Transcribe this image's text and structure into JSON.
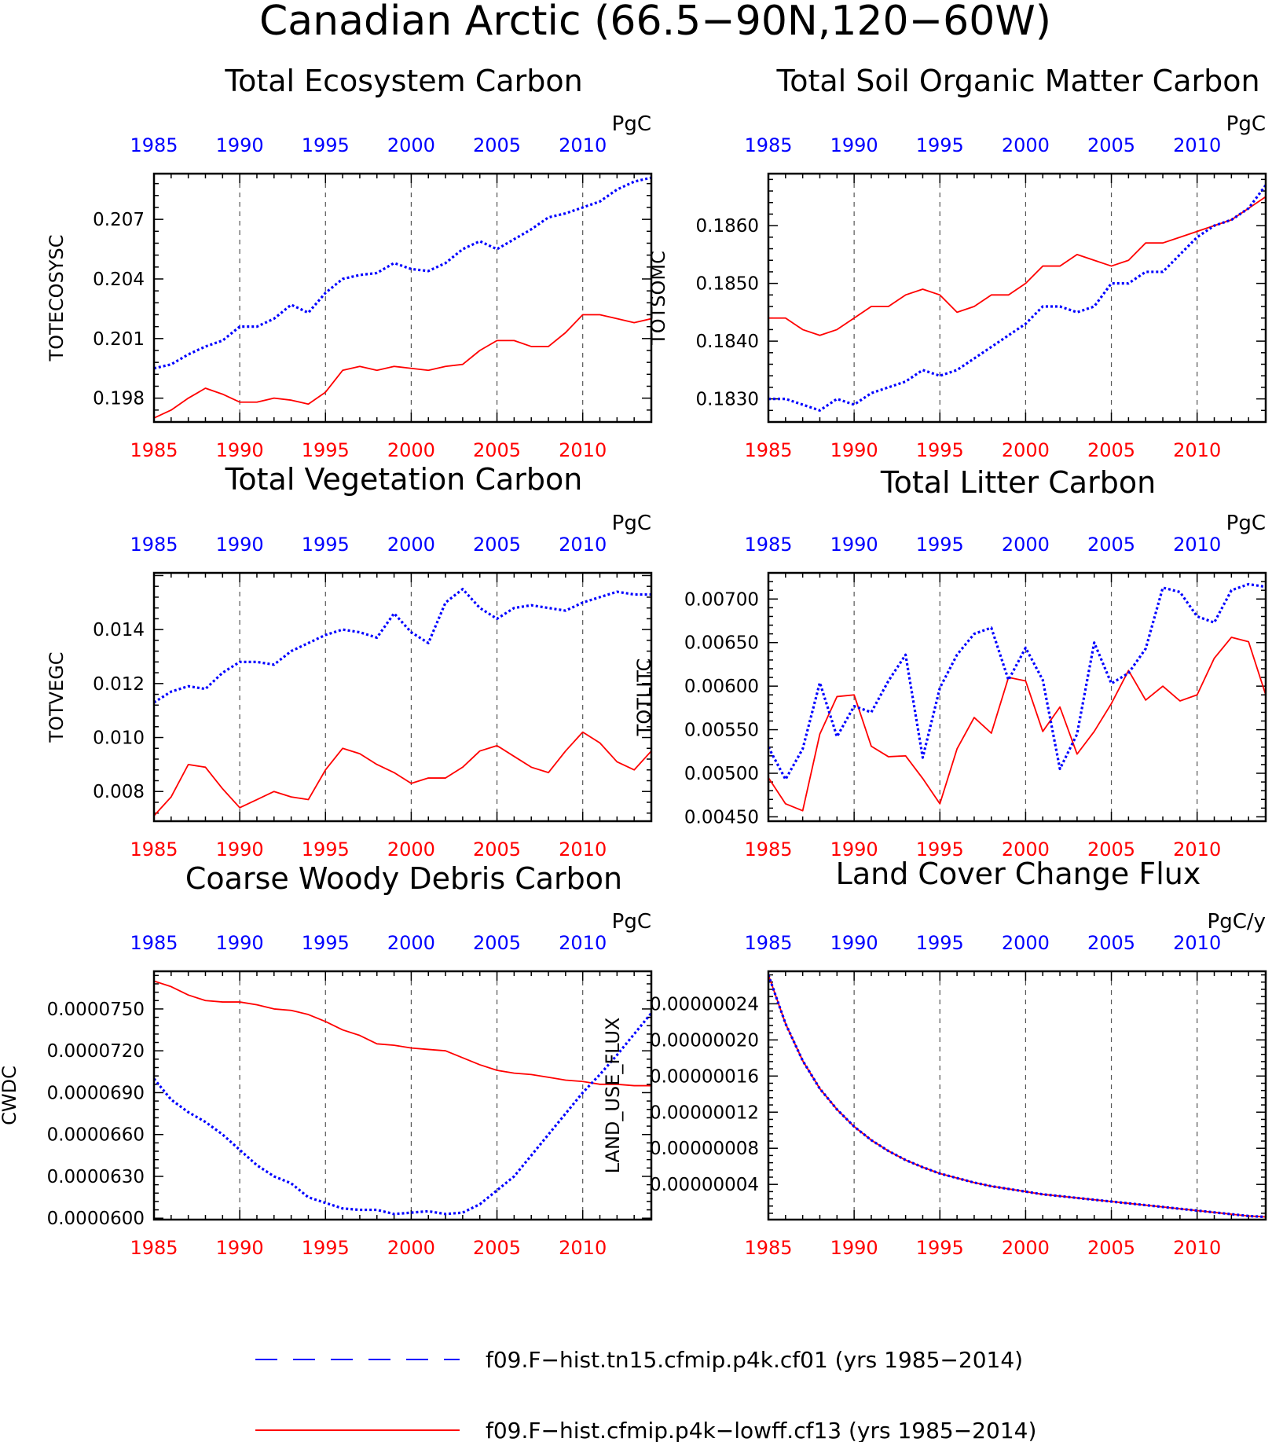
{
  "figure_title": "Canadian Arctic (66.5−90N,120−60W)",
  "colors": {
    "series_a": "#0000ff",
    "series_b": "#ff0000",
    "axis": "#000000",
    "grid": "#555555"
  },
  "legend": {
    "entries": [
      {
        "label": "f09.F−hist.tn15.cfmip.p4k.cf01 (yrs 1985−2014)",
        "color": "#0000ff",
        "style": "dashed"
      },
      {
        "label": "f09.F−hist.cfmip.p4k−lowff.cf13 (yrs 1985−2014)",
        "color": "#ff0000",
        "style": "solid"
      }
    ]
  },
  "chart_data": [
    {
      "type": "line",
      "title": "Total Ecosystem Carbon",
      "ylabel": "TOTECOSYSC",
      "units": "PgC",
      "xlim": [
        1985,
        2014
      ],
      "ylim": [
        0.1968,
        0.2093
      ],
      "yticks": [
        0.198,
        0.201,
        0.204,
        0.207
      ],
      "ytick_labels": [
        "0.198",
        "0.201",
        "0.204",
        "0.207"
      ],
      "xticks": [
        1985,
        1990,
        1995,
        2000,
        2005,
        2010
      ],
      "xtick_labels": [
        "1985",
        "1990",
        "1995",
        "2000",
        "2005",
        "2010"
      ],
      "x_start": 1985,
      "series": [
        {
          "color": "#0000ff",
          "style": "dashed",
          "values": [
            0.1995,
            0.1997,
            0.2002,
            0.2006,
            0.2009,
            0.2016,
            0.2016,
            0.202,
            0.2027,
            0.2023,
            0.2033,
            0.204,
            0.2042,
            0.2043,
            0.2048,
            0.2045,
            0.2044,
            0.2048,
            0.2055,
            0.2059,
            0.2055,
            0.206,
            0.2065,
            0.2071,
            0.2073,
            0.2076,
            0.2079,
            0.2085,
            0.2089,
            0.2091
          ]
        },
        {
          "color": "#ff0000",
          "style": "solid",
          "values": [
            0.197,
            0.1974,
            0.198,
            0.1985,
            0.1982,
            0.1978,
            0.1978,
            0.198,
            0.1979,
            0.1977,
            0.1983,
            0.1994,
            0.1996,
            0.1994,
            0.1996,
            0.1995,
            0.1994,
            0.1996,
            0.1997,
            0.2004,
            0.2009,
            0.2009,
            0.2006,
            0.2006,
            0.2013,
            0.2022,
            0.2022,
            0.202,
            0.2018,
            0.202
          ]
        }
      ]
    },
    {
      "type": "line",
      "title": "Total Soil Organic Matter Carbon",
      "ylabel": "TOTSOMC",
      "units": "PgC",
      "xlim": [
        1985,
        2014
      ],
      "ylim": [
        0.1826,
        0.1869
      ],
      "yticks": [
        0.183,
        0.184,
        0.185,
        0.186
      ],
      "ytick_labels": [
        "0.1830",
        "0.1840",
        "0.1850",
        "0.1860"
      ],
      "xticks": [
        1985,
        1990,
        1995,
        2000,
        2005,
        2010
      ],
      "xtick_labels": [
        "1985",
        "1990",
        "1995",
        "2000",
        "2005",
        "2010"
      ],
      "x_start": 1985,
      "series": [
        {
          "color": "#0000ff",
          "style": "dashed",
          "values": [
            0.183,
            0.183,
            0.1829,
            0.1828,
            0.183,
            0.1829,
            0.1831,
            0.1832,
            0.1833,
            0.1835,
            0.1834,
            0.1835,
            0.1837,
            0.1839,
            0.1841,
            0.1843,
            0.1846,
            0.1846,
            0.1845,
            0.1846,
            0.185,
            0.185,
            0.1852,
            0.1852,
            0.1855,
            0.1858,
            0.186,
            0.1861,
            0.1863,
            0.1867
          ]
        },
        {
          "color": "#ff0000",
          "style": "solid",
          "values": [
            0.1844,
            0.1844,
            0.1842,
            0.1841,
            0.1842,
            0.1844,
            0.1846,
            0.1846,
            0.1848,
            0.1849,
            0.1848,
            0.1845,
            0.1846,
            0.1848,
            0.1848,
            0.185,
            0.1853,
            0.1853,
            0.1855,
            0.1854,
            0.1853,
            0.1854,
            0.1857,
            0.1857,
            0.1858,
            0.1859,
            0.186,
            0.1861,
            0.1863,
            0.1865
          ]
        }
      ]
    },
    {
      "type": "line",
      "title": "Total Vegetation Carbon",
      "ylabel": "TOTVEGC",
      "units": "PgC",
      "xlim": [
        1985,
        2014
      ],
      "ylim": [
        0.0069,
        0.0161
      ],
      "yticks": [
        0.008,
        0.01,
        0.012,
        0.014
      ],
      "ytick_labels": [
        "0.008",
        "0.010",
        "0.012",
        "0.014"
      ],
      "xticks": [
        1985,
        1990,
        1995,
        2000,
        2005,
        2010
      ],
      "xtick_labels": [
        "1985",
        "1990",
        "1995",
        "2000",
        "2005",
        "2010"
      ],
      "x_start": 1985,
      "series": [
        {
          "color": "#0000ff",
          "style": "dashed",
          "values": [
            0.0113,
            0.0117,
            0.0119,
            0.0118,
            0.0124,
            0.0128,
            0.0128,
            0.0127,
            0.0132,
            0.0135,
            0.0138,
            0.014,
            0.0139,
            0.0137,
            0.0146,
            0.0139,
            0.0135,
            0.015,
            0.0155,
            0.0148,
            0.0144,
            0.0148,
            0.0149,
            0.0148,
            0.0147,
            0.015,
            0.0152,
            0.0154,
            0.0153,
            0.0153
          ]
        },
        {
          "color": "#ff0000",
          "style": "solid",
          "values": [
            0.0071,
            0.0078,
            0.009,
            0.0089,
            0.0081,
            0.0074,
            0.0077,
            0.008,
            0.0078,
            0.0077,
            0.0088,
            0.0096,
            0.0094,
            0.009,
            0.0087,
            0.0083,
            0.0085,
            0.0085,
            0.0089,
            0.0095,
            0.0097,
            0.0093,
            0.0089,
            0.0087,
            0.0095,
            0.0102,
            0.0098,
            0.0091,
            0.0088,
            0.0095
          ]
        }
      ]
    },
    {
      "type": "line",
      "title": "Total Litter Carbon",
      "ylabel": "TOTLITC",
      "units": "PgC",
      "xlim": [
        1985,
        2014
      ],
      "ylim": [
        0.00445,
        0.0073
      ],
      "yticks": [
        0.0045,
        0.005,
        0.0055,
        0.006,
        0.0065,
        0.007
      ],
      "ytick_labels": [
        "0.00450",
        "0.00500",
        "0.00550",
        "0.00600",
        "0.00650",
        "0.00700"
      ],
      "xticks": [
        1985,
        1990,
        1995,
        2000,
        2005,
        2010
      ],
      "xtick_labels": [
        "1985",
        "1990",
        "1995",
        "2000",
        "2005",
        "2010"
      ],
      "x_start": 1985,
      "series": [
        {
          "color": "#0000ff",
          "style": "dashed",
          "values": [
            0.0053,
            0.00493,
            0.00528,
            0.00604,
            0.00542,
            0.00577,
            0.0057,
            0.00606,
            0.00636,
            0.00518,
            0.00598,
            0.00636,
            0.0066,
            0.00667,
            0.00607,
            0.00644,
            0.00607,
            0.00505,
            0.00545,
            0.0065,
            0.00603,
            0.00615,
            0.00643,
            0.00713,
            0.00708,
            0.0068,
            0.00673,
            0.0071,
            0.00717,
            0.00714
          ]
        },
        {
          "color": "#ff0000",
          "style": "solid",
          "values": [
            0.00495,
            0.00465,
            0.00457,
            0.00545,
            0.00588,
            0.0059,
            0.00531,
            0.00519,
            0.0052,
            0.00494,
            0.00465,
            0.00528,
            0.00564,
            0.00546,
            0.0061,
            0.00606,
            0.00548,
            0.00576,
            0.00522,
            0.00548,
            0.0058,
            0.00618,
            0.00584,
            0.006,
            0.00583,
            0.0059,
            0.00632,
            0.00656,
            0.00651,
            0.0059
          ]
        }
      ]
    },
    {
      "type": "line",
      "title": "Coarse Woody Debris Carbon",
      "ylabel": "CWDC",
      "units": "PgC",
      "xlim": [
        1985,
        2014
      ],
      "ylim": [
        5.99e-05,
        7.77e-05
      ],
      "yticks": [
        6e-05,
        6.3e-05,
        6.6e-05,
        6.9e-05,
        7.2e-05,
        7.5e-05
      ],
      "ytick_labels": [
        "0.0000600",
        "0.0000630",
        "0.0000660",
        "0.0000690",
        "0.0000720",
        "0.0000750"
      ],
      "xticks": [
        1985,
        1990,
        1995,
        2000,
        2005,
        2010
      ],
      "xtick_labels": [
        "1985",
        "1990",
        "1995",
        "2000",
        "2005",
        "2010"
      ],
      "x_start": 1985,
      "series": [
        {
          "color": "#0000ff",
          "style": "dashed",
          "values": [
            7e-05,
            6.85e-05,
            6.76e-05,
            6.69e-05,
            6.6e-05,
            6.49e-05,
            6.38e-05,
            6.3e-05,
            6.25e-05,
            6.15e-05,
            6.11e-05,
            6.07e-05,
            6.06e-05,
            6.06e-05,
            6.03e-05,
            6.04e-05,
            6.05e-05,
            6.03e-05,
            6.04e-05,
            6.1e-05,
            6.2e-05,
            6.3e-05,
            6.45e-05,
            6.6e-05,
            6.75e-05,
            6.9e-05,
            7.03e-05,
            7.17e-05,
            7.32e-05,
            7.47e-05
          ]
        },
        {
          "color": "#ff0000",
          "style": "solid",
          "values": [
            7.7e-05,
            7.66e-05,
            7.6e-05,
            7.56e-05,
            7.55e-05,
            7.55e-05,
            7.53e-05,
            7.5e-05,
            7.49e-05,
            7.46e-05,
            7.41e-05,
            7.35e-05,
            7.31e-05,
            7.25e-05,
            7.24e-05,
            7.22e-05,
            7.21e-05,
            7.2e-05,
            7.15e-05,
            7.1e-05,
            7.06e-05,
            7.04e-05,
            7.03e-05,
            7.01e-05,
            6.99e-05,
            6.98e-05,
            6.96e-05,
            6.96e-05,
            6.95e-05,
            6.95e-05
          ]
        }
      ]
    },
    {
      "type": "line",
      "title": "Land Cover Change Flux",
      "ylabel": "LAND_USE_FLUX",
      "units": "PgC/y",
      "xlim": [
        1985,
        2014
      ],
      "ylim": [
        1e-09,
        2.76e-07
      ],
      "yticks": [
        4e-08,
        8e-08,
        1.2e-07,
        1.6e-07,
        2e-07,
        2.4e-07
      ],
      "ytick_labels": [
        "0.00000004",
        "0.00000008",
        "0.00000012",
        "0.00000016",
        "0.00000020",
        "0.00000024"
      ],
      "xticks": [
        1985,
        1990,
        1995,
        2000,
        2005,
        2010
      ],
      "xtick_labels": [
        "1985",
        "1990",
        "1995",
        "2000",
        "2005",
        "2010"
      ],
      "x_start": 1985,
      "series": [
        {
          "color": "#0000ff",
          "style": "dashed",
          "values": [
            2.72e-07,
            2.18e-07,
            1.77e-07,
            1.46e-07,
            1.23e-07,
            1.04e-07,
            8.9e-08,
            7.7e-08,
            6.7e-08,
            5.9e-08,
            5.2e-08,
            4.7e-08,
            4.2e-08,
            3.8e-08,
            3.5e-08,
            3.2e-08,
            2.9e-08,
            2.7e-08,
            2.5e-08,
            2.3e-08,
            2.1e-08,
            1.9e-08,
            1.7e-08,
            1.5e-08,
            1.3e-08,
            1.1e-08,
            9e-09,
            7e-09,
            5e-09,
            4e-09
          ]
        },
        {
          "color": "#ff0000",
          "style": "solid",
          "values": [
            2.72e-07,
            2.18e-07,
            1.77e-07,
            1.46e-07,
            1.23e-07,
            1.04e-07,
            8.9e-08,
            7.7e-08,
            6.7e-08,
            5.9e-08,
            5.2e-08,
            4.7e-08,
            4.2e-08,
            3.8e-08,
            3.5e-08,
            3.2e-08,
            2.9e-08,
            2.7e-08,
            2.5e-08,
            2.3e-08,
            2.1e-08,
            1.9e-08,
            1.7e-08,
            1.5e-08,
            1.3e-08,
            1.1e-08,
            9e-09,
            7e-09,
            5e-09,
            4e-09
          ]
        }
      ]
    }
  ]
}
